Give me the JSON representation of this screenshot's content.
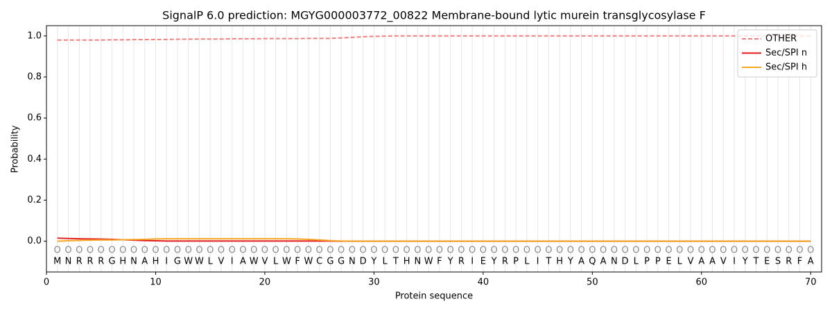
{
  "chart_data": {
    "type": "line",
    "title": "SignalP 6.0 prediction: MGYG000003772_00822 Membrane-bound lytic murein transglycosylase F",
    "xlabel": "Protein sequence",
    "ylabel": "Probability",
    "x": [
      1,
      2,
      3,
      4,
      5,
      6,
      7,
      8,
      9,
      10,
      11,
      12,
      13,
      14,
      15,
      16,
      17,
      18,
      19,
      20,
      21,
      22,
      23,
      24,
      25,
      26,
      27,
      28,
      29,
      30,
      31,
      32,
      33,
      34,
      35,
      36,
      37,
      38,
      39,
      40,
      41,
      42,
      43,
      44,
      45,
      46,
      47,
      48,
      49,
      50,
      51,
      52,
      53,
      54,
      55,
      56,
      57,
      58,
      59,
      60,
      61,
      62,
      63,
      64,
      65,
      66,
      67,
      68,
      69,
      70
    ],
    "sequence": [
      "M",
      "N",
      "R",
      "R",
      "R",
      "G",
      "H",
      "N",
      "A",
      "H",
      "I",
      "G",
      "W",
      "W",
      "L",
      "V",
      "I",
      "A",
      "W",
      "V",
      "L",
      "W",
      "F",
      "W",
      "C",
      "G",
      "G",
      "N",
      "D",
      "Y",
      "L",
      "T",
      "H",
      "N",
      "W",
      "F",
      "Y",
      "R",
      "I",
      "E",
      "Y",
      "R",
      "P",
      "L",
      "I",
      "T",
      "H",
      "Y",
      "A",
      "Q",
      "A",
      "N",
      "D",
      "L",
      "P",
      "P",
      "E",
      "L",
      "V",
      "A",
      "A",
      "V",
      "I",
      "Y",
      "T",
      "E",
      "S",
      "R",
      "F",
      "A"
    ],
    "region_labels": [
      "O",
      "O",
      "O",
      "O",
      "O",
      "O",
      "O",
      "O",
      "O",
      "O",
      "O",
      "O",
      "O",
      "O",
      "O",
      "O",
      "O",
      "O",
      "O",
      "O",
      "O",
      "O",
      "O",
      "O",
      "O",
      "O",
      "O",
      "O",
      "O",
      "O",
      "O",
      "O",
      "O",
      "O",
      "O",
      "O",
      "O",
      "O",
      "O",
      "O",
      "O",
      "O",
      "O",
      "O",
      "O",
      "O",
      "O",
      "O",
      "O",
      "O",
      "O",
      "O",
      "O",
      "O",
      "O",
      "O",
      "O",
      "O",
      "O",
      "O",
      "O",
      "O",
      "O",
      "O",
      "O",
      "O",
      "O",
      "O",
      "O",
      "O"
    ],
    "series": [
      {
        "name": "OTHER",
        "color": "#f08080",
        "linestyle": "dashed",
        "values": [
          0.98,
          0.98,
          0.98,
          0.98,
          0.98,
          0.981,
          0.981,
          0.982,
          0.982,
          0.983,
          0.983,
          0.984,
          0.984,
          0.985,
          0.985,
          0.985,
          0.986,
          0.986,
          0.986,
          0.987,
          0.987,
          0.987,
          0.987,
          0.988,
          0.988,
          0.988,
          0.99,
          0.993,
          0.996,
          0.998,
          0.999,
          1,
          1,
          1,
          1,
          1,
          1,
          1,
          1,
          1,
          1,
          1,
          1,
          1,
          1,
          1,
          1,
          1,
          1,
          1,
          1,
          1,
          1,
          1,
          1,
          1,
          1,
          1,
          1,
          1,
          1,
          1,
          1,
          1,
          1,
          1,
          1,
          1,
          1,
          1
        ]
      },
      {
        "name": "Sec/SPI n",
        "color": "#e31a1c",
        "linestyle": "solid",
        "values": [
          0.015,
          0.013,
          0.012,
          0.011,
          0.01,
          0.009,
          0.007,
          0.005,
          0.003,
          0.002,
          0.001,
          0.001,
          0.001,
          0.001,
          0.001,
          0.001,
          0.001,
          0.001,
          0.001,
          0.001,
          0.001,
          0.001,
          0.001,
          0.001,
          0.001,
          0.001,
          0,
          0,
          0,
          0,
          0,
          0,
          0,
          0,
          0,
          0,
          0,
          0,
          0,
          0,
          0,
          0,
          0,
          0,
          0,
          0,
          0,
          0,
          0,
          0,
          0,
          0,
          0,
          0,
          0,
          0,
          0,
          0,
          0,
          0,
          0,
          0,
          0,
          0,
          0,
          0,
          0,
          0,
          0,
          0
        ]
      },
      {
        "name": "Sec/SPI h",
        "color": "#f5a623",
        "linestyle": "solid",
        "values": [
          0,
          0.002,
          0.004,
          0.005,
          0.006,
          0.006,
          0.007,
          0.008,
          0.009,
          0.011,
          0.012,
          0.012,
          0.012,
          0.012,
          0.012,
          0.012,
          0.012,
          0.012,
          0.012,
          0.012,
          0.012,
          0.012,
          0.011,
          0.009,
          0.006,
          0.003,
          0.001,
          0,
          0,
          0,
          0,
          0,
          0,
          0,
          0,
          0,
          0,
          0,
          0,
          0,
          0,
          0,
          0,
          0,
          0,
          0,
          0,
          0,
          0,
          0,
          0,
          0,
          0,
          0,
          0,
          0,
          0,
          0,
          0,
          0,
          0,
          0,
          0,
          0,
          0,
          0,
          0,
          0,
          0,
          0
        ]
      }
    ],
    "xlim": [
      0,
      71
    ],
    "ylim": [
      -0.15,
      1.05
    ],
    "xticks": [
      0,
      10,
      20,
      30,
      40,
      50,
      60,
      70
    ],
    "yticks": [
      {
        "value": 0,
        "label": "0.0"
      },
      {
        "value": 0.2,
        "label": "0.2"
      },
      {
        "value": 0.4,
        "label": "0.4"
      },
      {
        "value": 0.6,
        "label": "0.6"
      },
      {
        "value": 0.8,
        "label": "0.8"
      },
      {
        "value": 1,
        "label": "1.0"
      }
    ],
    "grid": true,
    "legend": "upper right"
  }
}
